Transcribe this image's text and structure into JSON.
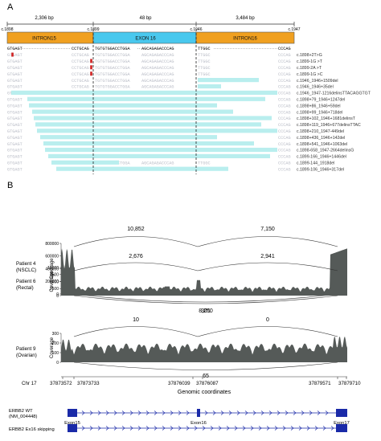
{
  "panel_a": {
    "label": "A",
    "segments": [
      {
        "size": "2,306 bp",
        "left_coord": "c.1898",
        "right_coord": "c.1899",
        "label": "INTRON15",
        "color": "#f0a020"
      },
      {
        "size": "48 bp",
        "left_coord": "c.1899",
        "right_coord": "c.1946",
        "label": "EXON 16",
        "color": "#49c8ee"
      },
      {
        "size": "3,484 bp",
        "left_coord": "c.1946",
        "right_coord": "c.1947",
        "label": "INTRON16",
        "color": "#f0a020"
      }
    ],
    "ref_seq": {
      "left": "GTGAGT",
      "mid1": "CCTGCAG",
      "exon": "TGTGTGGACCTGGA",
      "mid2": "AGCAGAGACCCAG",
      "right1": "TTGGC",
      "right2": "CCCAG"
    },
    "variants": [
      {
        "label": "c.1898+2T>G",
        "bar": false
      },
      {
        "label": "c.1899-1G >T",
        "bar": false
      },
      {
        "label": "c.1899-2A >T",
        "bar": false
      },
      {
        "label": "c.1899-1G >C",
        "bar": false
      },
      {
        "label": "c.1946_1946+1509del",
        "bar": true
      },
      {
        "label": "c.1946_1946+35del",
        "bar": true
      },
      {
        "label": "c.1946_1947-1216delinsTTACAGGTGT",
        "bar": true
      },
      {
        "label": "c.1898+79_1946+1247del",
        "bar": true
      },
      {
        "label": "c.1898+86_1946+59del",
        "bar": true
      },
      {
        "label": "c.1898+99_1946+718del",
        "bar": true
      },
      {
        "label": "c.1898+102_1946+1681delinsT",
        "bar": true
      },
      {
        "label": "c.1898+119_1946+677delinsTTAC",
        "bar": true
      },
      {
        "label": "c.1898+210_1947-449del",
        "bar": true
      },
      {
        "label": "c.1898+436_1946+142del",
        "bar": true
      },
      {
        "label": "c.1898+541_1946+1063del",
        "bar": true
      },
      {
        "label": "c.1898-658_1947-2664delinsG",
        "bar": true
      },
      {
        "label": "c.1899-166_1946+1446del",
        "bar": true
      },
      {
        "label": "c.1899-144_1918del",
        "bar": true
      },
      {
        "label": "c.1899-106_1946+317del",
        "bar": true
      }
    ]
  },
  "panel_b": {
    "label": "B",
    "coverage_axis_label": "Coverage",
    "tracks": [
      {
        "name_line1": "Patient 4",
        "name_line2": "(NSCLC)",
        "yticks": [
          "800000",
          "600000",
          "400000",
          "200000",
          "0"
        ],
        "junction_left": "10,852",
        "junction_right": "7,150",
        "junction_skip": "8,250"
      },
      {
        "name_line1": "Patient 6",
        "name_line2": "(Rectal)",
        "yticks": [
          "10000",
          "7500",
          "5000",
          "2500",
          "0"
        ],
        "junction_left": "2,676",
        "junction_right": "2,941",
        "junction_skip": "301"
      },
      {
        "name_line1": "Patient 9",
        "name_line2": "(Ovarian)",
        "yticks": [
          "300",
          "200",
          "100",
          "0"
        ],
        "junction_left": "10",
        "junction_right": "0",
        "junction_skip": "65"
      }
    ],
    "chrom": "Chr 17",
    "coords": [
      "37873572",
      "37873733",
      "37876039",
      "37876087",
      "37879571",
      "37879710"
    ],
    "xaxis_label": "Genomic coordinates",
    "transcripts": [
      {
        "name_line1": "ERBB2 WT",
        "name_line2": "(NM_004448)",
        "exons": [
          "Exon15",
          "Exon16",
          "Exon17"
        ]
      },
      {
        "name_line1": "ERBB2 Ex16 skipping",
        "name_line2": ""
      }
    ],
    "colors": {
      "coverage": "#555a58",
      "transcript": "#1a2aa8"
    }
  }
}
